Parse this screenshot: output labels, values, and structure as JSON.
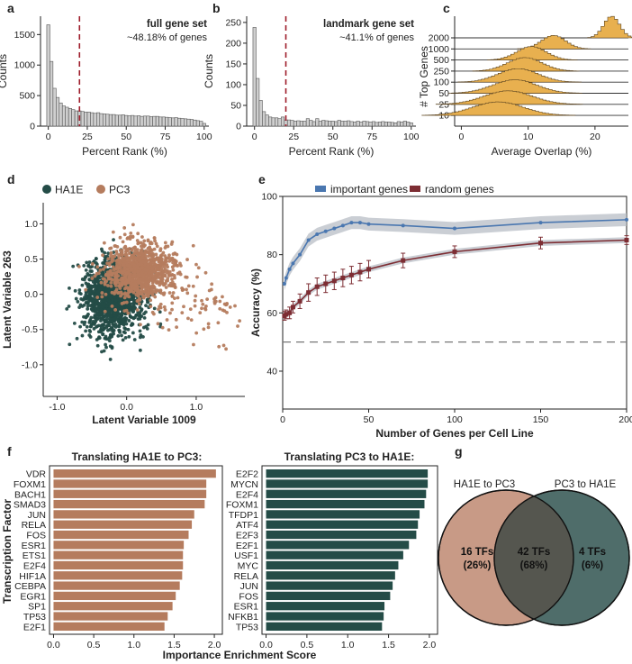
{
  "colors": {
    "hist_fill": "#cfcfcf",
    "ridge_fill": "#e8b04f",
    "ha1e": "#244c47",
    "pc3": "#b57c5e",
    "important": "#4a77b0",
    "random": "#7d2d33",
    "dashed_red": "#9e1c2a",
    "venn_left": "#c89a86",
    "venn_right": "#4f6d6a",
    "venn_overlap": "#55564f"
  },
  "chart_data": [
    {
      "panel": "a",
      "type": "bar",
      "title": "full gene set",
      "annotation": "~48.18% of genes",
      "xlabel": "Percent Rank (%)",
      "ylabel": "Counts",
      "xlim": [
        -5,
        103
      ],
      "ylim": [
        0,
        1800
      ],
      "xticks": [
        0,
        25,
        50,
        75,
        100
      ],
      "yticks": [
        0,
        500,
        1000,
        1500
      ],
      "bin_start": -1,
      "bin_width": 2,
      "cutoff": 20,
      "values": [
        1660,
        1060,
        620,
        470,
        380,
        330,
        310,
        290,
        270,
        250,
        250,
        240,
        230,
        230,
        220,
        210,
        220,
        205,
        200,
        195,
        190,
        190,
        180,
        180,
        185,
        175,
        170,
        175,
        165,
        170,
        160,
        165,
        165,
        155,
        160,
        160,
        150,
        150,
        145,
        140,
        135,
        140,
        130,
        125,
        120,
        115,
        110,
        100,
        90,
        80,
        45
      ]
    },
    {
      "panel": "b",
      "type": "bar",
      "title": "landmark gene set",
      "annotation": "~41.1% of genes",
      "xlabel": "Percent Rank (%)",
      "ylabel": "Counts",
      "xlim": [
        -5,
        103
      ],
      "ylim": [
        0,
        265
      ],
      "xticks": [
        0,
        25,
        50,
        75,
        100
      ],
      "yticks": [
        0,
        50,
        100,
        150,
        200,
        250
      ],
      "bin_start": -1,
      "bin_width": 2,
      "cutoff": 20,
      "values": [
        238,
        115,
        62,
        35,
        27,
        22,
        20,
        20,
        18,
        22,
        15,
        15,
        14,
        12,
        13,
        12,
        12,
        18,
        14,
        11,
        18,
        12,
        14,
        13,
        12,
        12,
        11,
        14,
        12,
        12,
        13,
        11,
        10,
        12,
        10,
        12,
        11,
        10,
        11,
        9,
        10,
        11,
        10,
        10,
        9,
        8,
        11,
        10,
        12,
        10,
        8
      ]
    },
    {
      "panel": "c",
      "type": "area",
      "xlabel": "Average Overlap (%)",
      "ylabel": "# Top Genes",
      "xlim": [
        -1,
        25
      ],
      "xticks": [
        0,
        10,
        20
      ],
      "rows": [
        {
          "label": "2000",
          "center": 22.5,
          "width": 1.2
        },
        {
          "label": "1000",
          "center": 13.8,
          "width": 1.8
        },
        {
          "label": "500",
          "center": 10.5,
          "width": 2.2
        },
        {
          "label": "250",
          "center": 9.5,
          "width": 2.6
        },
        {
          "label": "100",
          "center": 8.5,
          "width": 3.0
        },
        {
          "label": "50",
          "center": 8.0,
          "width": 3.3
        },
        {
          "label": "25",
          "center": 7.0,
          "width": 3.6
        },
        {
          "label": "10",
          "center": 5.5,
          "width": 3.8
        }
      ]
    },
    {
      "panel": "d",
      "type": "scatter",
      "xlabel": "Latent Variable 1009",
      "ylabel": "Latent Variable 263",
      "xlim": [
        -1.2,
        1.7
      ],
      "ylim": [
        -1.45,
        1.3
      ],
      "xticks": [
        -1.0,
        0.0,
        1.0
      ],
      "yticks": [
        -1.0,
        -0.5,
        0.0,
        0.5,
        1.0
      ],
      "series": [
        {
          "name": "HA1E",
          "center": [
            -0.2,
            -0.05
          ],
          "spread": [
            0.22,
            0.27
          ],
          "n": 1300
        },
        {
          "name": "PC3",
          "center": [
            0.2,
            0.33
          ],
          "spread": [
            0.25,
            0.2
          ],
          "n": 1050
        }
      ]
    },
    {
      "panel": "e",
      "type": "line",
      "xlabel": "Number of Genes per Cell Line",
      "ylabel": "Accuracy (%)",
      "xlim": [
        0,
        200
      ],
      "ylim": [
        27,
        100
      ],
      "xticks": [
        0,
        50,
        100,
        150,
        200
      ],
      "yticks": [
        40,
        60,
        80,
        100
      ],
      "baseline": 50,
      "series": [
        {
          "name": "important genes",
          "x": [
            1,
            2,
            4,
            6,
            10,
            15,
            20,
            25,
            30,
            35,
            40,
            45,
            50,
            70,
            100,
            150,
            200
          ],
          "y": [
            70,
            72,
            75,
            77,
            80,
            85,
            87,
            88,
            89,
            90,
            91,
            91,
            90.5,
            90,
            89,
            91,
            92
          ]
        },
        {
          "name": "random genes",
          "x": [
            1,
            2,
            4,
            6,
            10,
            15,
            20,
            25,
            30,
            35,
            40,
            45,
            50,
            70,
            100,
            150,
            200
          ],
          "y": [
            59,
            59.5,
            60,
            62,
            64,
            67,
            69,
            70,
            71,
            72,
            73,
            74,
            75,
            78,
            81,
            84,
            85
          ],
          "err": [
            1.5,
            1.5,
            2,
            2,
            2.5,
            3,
            3,
            3,
            3,
            3,
            3,
            3,
            3,
            2.5,
            2,
            2,
            1.5
          ]
        }
      ]
    },
    {
      "panel": "f-left",
      "type": "bar",
      "orientation": "horizontal",
      "title": "Translating HA1E to PC3:",
      "xlabel": "Importance Enrichment Score",
      "ylabel": "Transcription Factor",
      "xlim": [
        -0.05,
        2.1
      ],
      "xticks": [
        0.0,
        0.5,
        1.0,
        1.5,
        2.0
      ],
      "categories": [
        "VDR",
        "FOXM1",
        "BACH1",
        "SMAD3",
        "JUN",
        "RELA",
        "FOS",
        "ESR1",
        "ETS1",
        "E2F4",
        "HIF1A",
        "CEBPA",
        "EGR1",
        "SP1",
        "TP53",
        "E2F1"
      ],
      "values": [
        2.02,
        1.9,
        1.9,
        1.88,
        1.75,
        1.72,
        1.68,
        1.62,
        1.61,
        1.61,
        1.6,
        1.57,
        1.52,
        1.48,
        1.42,
        1.38
      ]
    },
    {
      "panel": "f-right",
      "type": "bar",
      "orientation": "horizontal",
      "title": "Translating PC3 to HA1E:",
      "xlabel": "",
      "xlim": [
        -0.05,
        2.1
      ],
      "xticks": [
        0.0,
        0.5,
        1.0,
        1.5,
        2.0
      ],
      "categories": [
        "E2F2",
        "MYCN",
        "E2F4",
        "FOXM1",
        "TFDP1",
        "ATF4",
        "E2F3",
        "E2F1",
        "USF1",
        "MYC",
        "RELA",
        "JUN",
        "FOS",
        "ESR1",
        "NFKB1",
        "TP53"
      ],
      "values": [
        1.98,
        1.98,
        1.96,
        1.94,
        1.88,
        1.86,
        1.84,
        1.75,
        1.68,
        1.62,
        1.58,
        1.55,
        1.52,
        1.45,
        1.44,
        1.42
      ]
    },
    {
      "panel": "g",
      "type": "venn",
      "left_label": "HA1E to PC3",
      "right_label": "PC3 to HA1E",
      "left_count": "16 TFs",
      "left_pct": "(26%)",
      "both_count": "42 TFs",
      "both_pct": "(68%)",
      "right_count": "4 TFs",
      "right_pct": "(6%)"
    }
  ]
}
